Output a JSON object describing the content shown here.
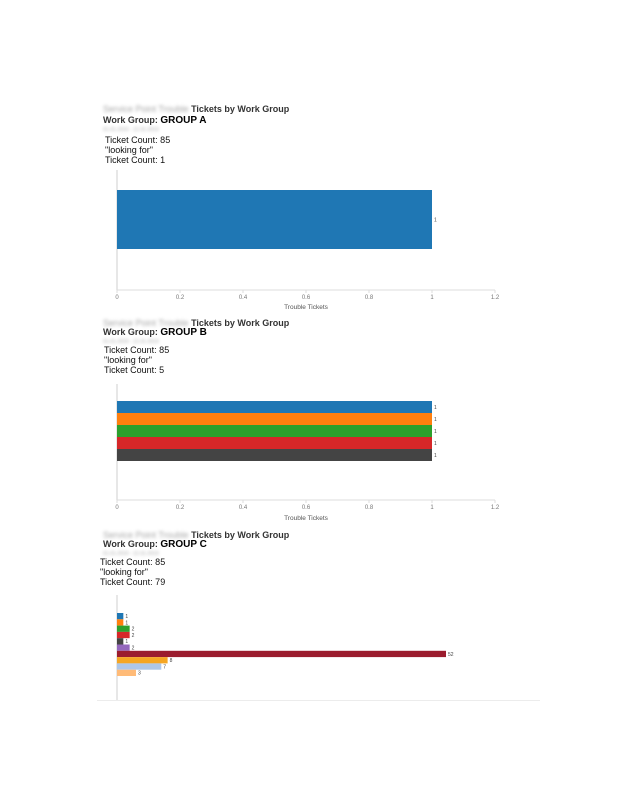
{
  "report_title_blurred": "Service Point Trouble",
  "report_title": "Tickets by Work Group",
  "work_group_label": "Work Group:",
  "date_range_blurred": "01-01-2019 - 12-31-2019",
  "labels": {
    "ticket_count_prefix": "Ticket Count: 85",
    "looking_for": "\"looking for\""
  },
  "colors": [
    "#1f77b4",
    "#ff7f0e",
    "#2ca02c",
    "#d62728",
    "#444444",
    "#9467bd",
    "#9b1c2e",
    "#f5a623",
    "#aec7e8",
    "#ffbb78"
  ],
  "sections": [
    {
      "work_group": "GROUP A",
      "ticket_count_line": "Ticket Count: 1",
      "chart_data": {
        "type": "bar",
        "orientation": "horizontal",
        "categories": [
          ""
        ],
        "values": [
          1
        ],
        "data_labels": [
          "1"
        ],
        "xlabel": "Trouble Tickets",
        "xlim": [
          0,
          1.2
        ],
        "xticks": [
          "0",
          "0.2",
          "0.4",
          "0.6",
          "0.8",
          "1",
          "1.2"
        ],
        "grid": false
      }
    },
    {
      "work_group": "GROUP B",
      "ticket_count_line": "Ticket Count: 5",
      "chart_data": {
        "type": "bar",
        "orientation": "horizontal",
        "categories": [
          "",
          "",
          "",
          "",
          ""
        ],
        "values": [
          1,
          1,
          1,
          1,
          1
        ],
        "data_labels": [
          "1",
          "1",
          "1",
          "1",
          "1"
        ],
        "xlabel": "Trouble Tickets",
        "xlim": [
          0,
          1.2
        ],
        "xticks": [
          "0",
          "0.2",
          "0.4",
          "0.6",
          "0.8",
          "1",
          "1.2"
        ],
        "grid": false
      }
    },
    {
      "work_group": "GROUP C",
      "ticket_count_line": "Ticket Count: 79",
      "chart_data": {
        "type": "bar",
        "orientation": "horizontal",
        "categories": [
          "",
          "",
          "",
          "",
          "",
          "",
          "",
          "",
          "",
          ""
        ],
        "values": [
          1,
          1,
          2,
          2,
          1,
          2,
          52,
          8,
          7,
          3
        ],
        "data_labels": [
          "1",
          "1",
          "2",
          "2",
          "1",
          "2",
          "52",
          "8",
          "7",
          "3"
        ],
        "xlabel": "",
        "xlim": [
          0,
          52
        ],
        "xticks": [],
        "grid": false
      }
    }
  ]
}
